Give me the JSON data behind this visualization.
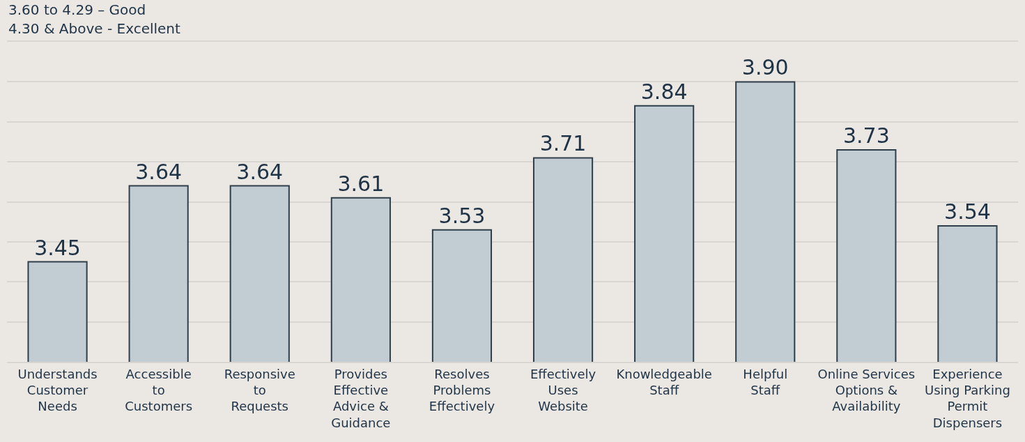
{
  "chart_data": {
    "type": "bar",
    "categories": [
      "Understands\nCustomer\nNeeds",
      "Accessible\nto\nCustomers",
      "Responsive\nto\nRequests",
      "Provides\nEffective\nAdvice &\nGuidance",
      "Resolves\nProblems\nEffectively",
      "Effectively\nUses\nWebsite",
      "Knowledgeable\nStaff",
      "Helpful\nStaff",
      "Online Services\nOptions &\nAvailability",
      "Experience\nUsing Parking\nPermit\nDispensers"
    ],
    "values": [
      3.45,
      3.64,
      3.64,
      3.61,
      3.53,
      3.71,
      3.84,
      3.9,
      3.73,
      3.54
    ],
    "color": "#c2ccd3",
    "ylim": [
      3.2,
      4.0
    ],
    "tick_labels": "x",
    "grid": "y",
    "value_labels": [
      "3.45",
      "3.64",
      "3.64",
      "3.61",
      "3.53",
      "3.71",
      "3.84",
      "3.90",
      "3.73",
      "3.54"
    ],
    "annotations": [
      "3.60 to 4.29 – Good",
      "4.30 & Above - Excellent"
    ]
  }
}
